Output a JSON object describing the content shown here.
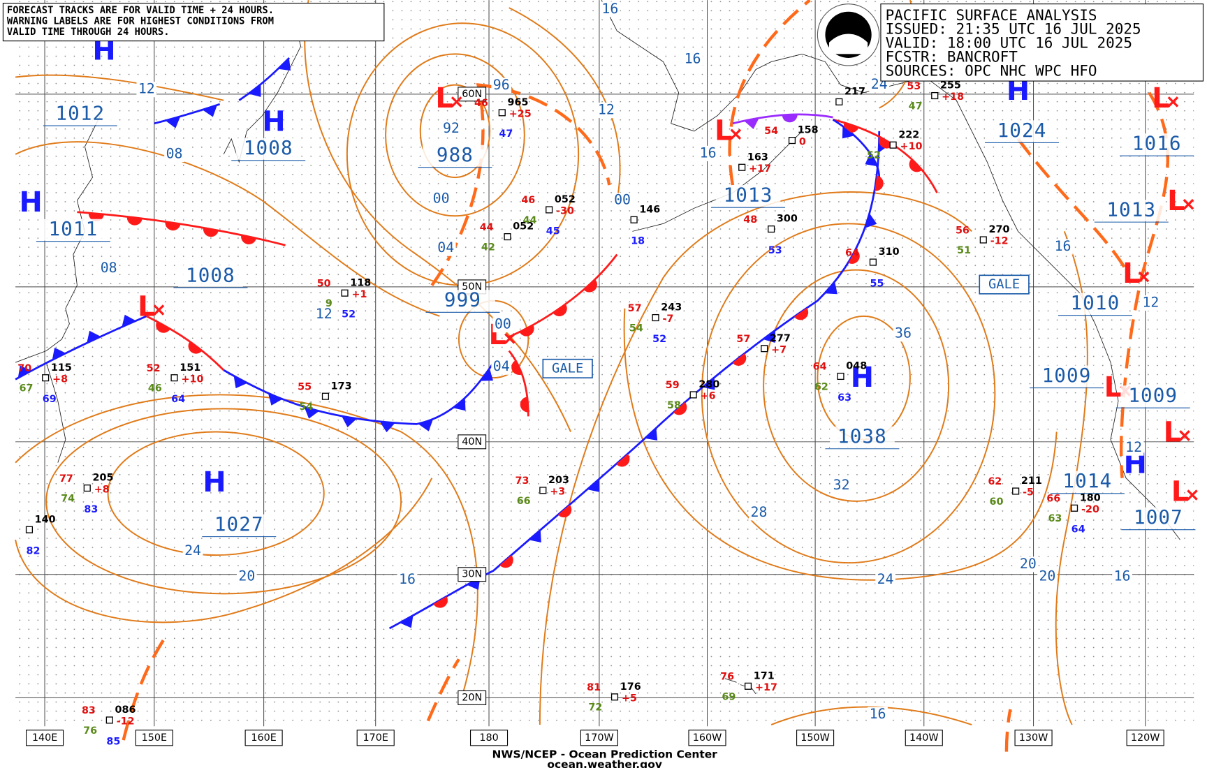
{
  "notice": [
    "FORECAST TRACKS ARE FOR VALID TIME + 24 HOURS.",
    "WARNING LABELS ARE FOR HIGHEST CONDITIONS FROM",
    "VALID TIME THROUGH 24 HOURS."
  ],
  "header": [
    "PACIFIC SURFACE ANALYSIS",
    "ISSUED: 21:35 UTC 16 JUL 2025",
    "VALID:  18:00 UTC 16 JUL 2025",
    "FCSTR:  BANCROFT",
    "SOURCES: OPC NHC WPC HFO"
  ],
  "footer": [
    "NWS/NCEP - Ocean Prediction Center",
    "ocean.weather.gov"
  ],
  "longitudes": [
    "140E",
    "150E",
    "160E",
    "170E",
    "180",
    "170W",
    "160W",
    "150W",
    "140W",
    "130W",
    "120W"
  ],
  "latitudes": [
    "60N",
    "50N",
    "40N",
    "30N",
    "20N"
  ],
  "centers": [
    {
      "symbol": "H",
      "pressure": "1012"
    },
    {
      "symbol": "H",
      "pressure": "1011"
    },
    {
      "symbol": "H",
      "pressure": "1008"
    },
    {
      "symbol": "L",
      "pressure": "988"
    },
    {
      "symbol": "L",
      "pressure": "1008"
    },
    {
      "symbol": "L",
      "pressure": "999"
    },
    {
      "symbol": "L",
      "pressure": "1013"
    },
    {
      "symbol": "H",
      "pressure": "1027"
    },
    {
      "symbol": "H",
      "pressure": "1038"
    },
    {
      "symbol": "H",
      "pressure": "1024"
    },
    {
      "symbol": "L",
      "pressure": "1016"
    },
    {
      "symbol": "L",
      "pressure": "1013"
    },
    {
      "symbol": "L",
      "pressure": "1010"
    },
    {
      "symbol": "L",
      "pressure": "1009"
    },
    {
      "symbol": "L",
      "pressure": "1009"
    },
    {
      "symbol": "H",
      "pressure": "1014"
    },
    {
      "symbol": "L",
      "pressure": "1007"
    }
  ],
  "isobar_labels": [
    "12",
    "08",
    "08",
    "12",
    "92",
    "96",
    "00",
    "04",
    "04",
    "00",
    "12",
    "16",
    "16",
    "16",
    "24",
    "36",
    "32",
    "28",
    "24",
    "20",
    "20",
    "16",
    "16",
    "16",
    "20",
    "24",
    "12",
    "12",
    "16",
    "00"
  ],
  "gale_labels": [
    "GALE",
    "GALE"
  ],
  "stations": [
    {
      "temp": "70",
      "pressure": "115",
      "change": "+8",
      "dewpoint": "67",
      "wave": "69"
    },
    {
      "temp": "52",
      "pressure": "151",
      "change": "+10",
      "dewpoint": "46",
      "wave": "64"
    },
    {
      "temp": "55",
      "pressure": "173",
      "dewpoint": "54"
    },
    {
      "temp": "50",
      "pressure": "118",
      "change": "+1",
      "dewpoint": "9",
      "wave": "52"
    },
    {
      "temp": "77",
      "pressure": "205",
      "change": "+8",
      "dewpoint": "74",
      "wave": "83"
    },
    {
      "pressure": "140",
      "wave": "82"
    },
    {
      "temp": "73",
      "pressure": "203",
      "change": "+3",
      "dewpoint": "66"
    },
    {
      "temp": "57",
      "pressure": "243",
      "change": "-7",
      "dewpoint": "54",
      "wave": "52"
    },
    {
      "temp": "59",
      "pressure": "280",
      "change": "+6",
      "dewpoint": "58"
    },
    {
      "temp": "57",
      "pressure": "277",
      "change": "+7"
    },
    {
      "temp": "64",
      "pressure": "310",
      "wave": "55"
    },
    {
      "temp": "64",
      "pressure": "048",
      "dewpoint": "62",
      "wave": "63"
    },
    {
      "temp": "48",
      "pressure": "300",
      "wave": "53"
    },
    {
      "temp": "54",
      "pressure": "158",
      "change": "0"
    },
    {
      "pressure": "163",
      "change": "+17"
    },
    {
      "temp": "76",
      "pressure": "171",
      "change": "+17",
      "dewpoint": "69"
    },
    {
      "temp": "81",
      "pressure": "176",
      "change": "+5",
      "dewpoint": "72"
    },
    {
      "temp": "83",
      "pressure": "086",
      "change": "-12",
      "dewpoint": "76",
      "wave": "85"
    },
    {
      "temp": "46",
      "pressure": "965",
      "change": "+25",
      "wave": "47"
    },
    {
      "temp": "44",
      "pressure": "052",
      "dewpoint": "42"
    },
    {
      "temp": "46",
      "pressure": "052",
      "change": "-30",
      "dewpoint": "44",
      "wave": "45"
    },
    {
      "temp": "53",
      "pressure": "255",
      "change": "+18",
      "dewpoint": "47"
    },
    {
      "temp": "56",
      "pressure": "270",
      "change": "-12",
      "dewpoint": "51"
    },
    {
      "temp": "62",
      "pressure": "211",
      "change": "-5",
      "dewpoint": "60"
    },
    {
      "temp": "66",
      "pressure": "180",
      "change": "-20",
      "dewpoint": "63",
      "wave": "64"
    },
    {
      "pressure": "222",
      "change": "+10",
      "dewpoint": "52"
    },
    {
      "pressure": "217"
    },
    {
      "pressure": "146",
      "wave": "18"
    }
  ]
}
